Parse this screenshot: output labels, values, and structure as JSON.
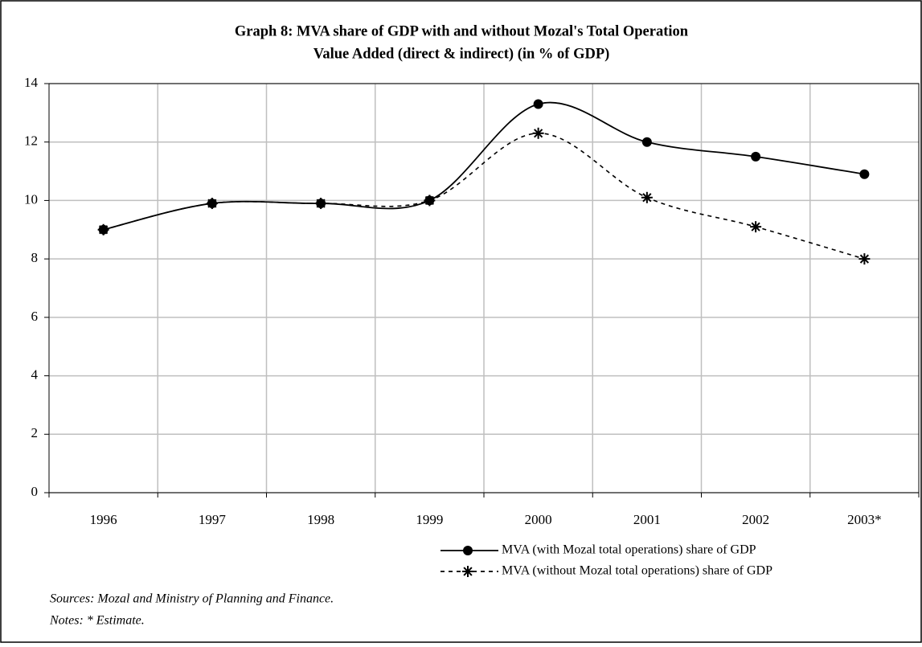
{
  "chart_data": {
    "type": "line",
    "title": [
      "Graph 8: MVA share of GDP with and without Mozal's Total Operation",
      "Value Added (direct & indirect) (in % of GDP)"
    ],
    "categories": [
      "1996",
      "1997",
      "1998",
      "1999",
      "2000",
      "2001",
      "2002",
      "2003*"
    ],
    "series": [
      {
        "name": "MVA (with Mozal total operations) share of GDP",
        "color": "#000000",
        "style": "solid",
        "marker": "circle",
        "values": [
          9.0,
          9.9,
          9.9,
          10.0,
          13.3,
          12.0,
          11.5,
          10.9
        ]
      },
      {
        "name": "MVA (without Mozal total operations) share of GDP",
        "color": "#000000",
        "style": "dashed",
        "marker": "asterisk",
        "values": [
          9.0,
          9.9,
          9.9,
          10.0,
          12.3,
          10.1,
          9.1,
          8.0
        ]
      }
    ],
    "ylim": [
      0,
      14
    ],
    "yticks": [
      0,
      2,
      4,
      6,
      8,
      10,
      12,
      14
    ],
    "grid": true,
    "smooth": true,
    "notes": [
      "Sources: Mozal and Ministry of Planning and Finance.",
      "Notes: * Estimate."
    ]
  }
}
